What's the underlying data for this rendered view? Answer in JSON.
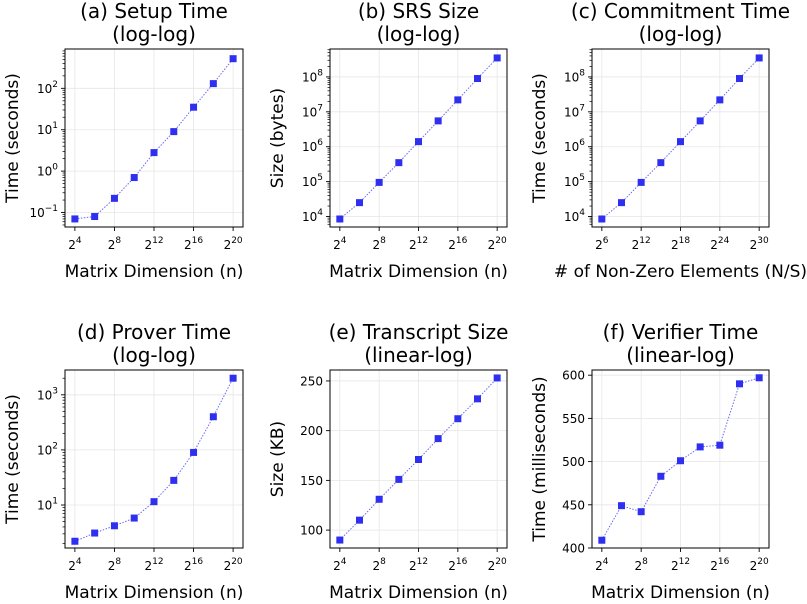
{
  "figure": {
    "marker_color": "#2f2ff0",
    "line_color": "#6a6af0",
    "grid": true
  },
  "chart_data": [
    {
      "id": "a",
      "type": "line",
      "title_line1": "(a) Setup Time",
      "title_line2": "(log-log)",
      "xlabel": "Matrix Dimension (n)",
      "ylabel": "Time (seconds)",
      "xscale": "log2",
      "yscale": "log10",
      "x_exponents": [
        4,
        6,
        8,
        10,
        12,
        14,
        16,
        18,
        20
      ],
      "y": [
        0.07,
        0.08,
        0.22,
        0.7,
        2.8,
        9,
        35,
        130,
        520
      ],
      "x_ticks": [
        4,
        8,
        12,
        16,
        20
      ],
      "x_tick_labels": [
        {
          "base": "2",
          "exp": "4"
        },
        {
          "base": "2",
          "exp": "8"
        },
        {
          "base": "2",
          "exp": "12"
        },
        {
          "base": "2",
          "exp": "16"
        },
        {
          "base": "2",
          "exp": "20"
        }
      ],
      "y_ticks": [
        0.1,
        1,
        10,
        100
      ],
      "y_tick_labels": [
        {
          "base": "10",
          "exp": "−1"
        },
        {
          "base": "10",
          "exp": "0"
        },
        {
          "base": "10",
          "exp": "1"
        },
        {
          "base": "10",
          "exp": "2"
        }
      ],
      "xlim_exp": [
        3,
        21
      ],
      "ylim_log10": [
        -1.35,
        2.95
      ]
    },
    {
      "id": "b",
      "type": "line",
      "title_line1": "(b) SRS Size",
      "title_line2": "(log-log)",
      "xlabel": "Matrix Dimension (n)",
      "ylabel": "Size (bytes)",
      "xscale": "log2",
      "yscale": "log10",
      "x_exponents": [
        4,
        6,
        8,
        10,
        12,
        14,
        16,
        18,
        20
      ],
      "y": [
        8500,
        25000,
        95000,
        350000,
        1400000,
        5500000,
        22000000,
        90000000,
        350000000
      ],
      "x_ticks": [
        4,
        8,
        12,
        16,
        20
      ],
      "x_tick_labels": [
        {
          "base": "2",
          "exp": "4"
        },
        {
          "base": "2",
          "exp": "8"
        },
        {
          "base": "2",
          "exp": "12"
        },
        {
          "base": "2",
          "exp": "16"
        },
        {
          "base": "2",
          "exp": "20"
        }
      ],
      "y_ticks": [
        10000,
        100000,
        1000000,
        10000000,
        100000000
      ],
      "y_tick_labels": [
        {
          "base": "10",
          "exp": "4"
        },
        {
          "base": "10",
          "exp": "5"
        },
        {
          "base": "10",
          "exp": "6"
        },
        {
          "base": "10",
          "exp": "7"
        },
        {
          "base": "10",
          "exp": "8"
        }
      ],
      "xlim_exp": [
        3,
        21
      ],
      "ylim_log10": [
        3.7,
        8.8
      ]
    },
    {
      "id": "c",
      "type": "line",
      "title_line1": "(c) Commitment Time",
      "title_line2": "(log-log)",
      "xlabel": "# of Non-Zero Elements (N/S)",
      "ylabel": "Time (seconds)",
      "xscale": "log2",
      "yscale": "log10",
      "x_exponents": [
        6,
        9,
        12,
        15,
        18,
        21,
        24,
        27,
        30
      ],
      "y": [
        8500,
        25000,
        95000,
        350000,
        1400000,
        5500000,
        22000000,
        90000000,
        350000000
      ],
      "x_ticks": [
        6,
        12,
        18,
        24,
        30
      ],
      "x_tick_labels": [
        {
          "base": "2",
          "exp": "6"
        },
        {
          "base": "2",
          "exp": "12"
        },
        {
          "base": "2",
          "exp": "18"
        },
        {
          "base": "2",
          "exp": "24"
        },
        {
          "base": "2",
          "exp": "30"
        }
      ],
      "y_ticks": [
        10000,
        100000,
        1000000,
        10000000,
        100000000
      ],
      "y_tick_labels": [
        {
          "base": "10",
          "exp": "4"
        },
        {
          "base": "10",
          "exp": "5"
        },
        {
          "base": "10",
          "exp": "6"
        },
        {
          "base": "10",
          "exp": "7"
        },
        {
          "base": "10",
          "exp": "8"
        }
      ],
      "xlim_exp": [
        4.5,
        31.5
      ],
      "ylim_log10": [
        3.7,
        8.8
      ]
    },
    {
      "id": "d",
      "type": "line",
      "title_line1": "(d) Prover Time",
      "title_line2": "(log-log)",
      "xlabel": "Matrix Dimension (n)",
      "ylabel": "Time (seconds)",
      "xscale": "log2",
      "yscale": "log10",
      "x_exponents": [
        4,
        6,
        8,
        10,
        12,
        14,
        16,
        18,
        20
      ],
      "y": [
        2.2,
        3.1,
        4.2,
        5.8,
        11.5,
        28,
        90,
        400,
        2000
      ],
      "x_ticks": [
        4,
        8,
        12,
        16,
        20
      ],
      "x_tick_labels": [
        {
          "base": "2",
          "exp": "4"
        },
        {
          "base": "2",
          "exp": "8"
        },
        {
          "base": "2",
          "exp": "12"
        },
        {
          "base": "2",
          "exp": "16"
        },
        {
          "base": "2",
          "exp": "20"
        }
      ],
      "y_ticks": [
        10,
        100,
        1000
      ],
      "y_tick_labels": [
        {
          "base": "10",
          "exp": "1"
        },
        {
          "base": "10",
          "exp": "2"
        },
        {
          "base": "10",
          "exp": "3"
        }
      ],
      "xlim_exp": [
        3,
        21
      ],
      "ylim_log10": [
        0.22,
        3.45
      ]
    },
    {
      "id": "e",
      "type": "line",
      "title_line1": "(e) Transcript Size",
      "title_line2": "(linear-log)",
      "xlabel": "Matrix Dimension (n)",
      "ylabel": "Size (KB)",
      "xscale": "log2",
      "yscale": "linear",
      "x_exponents": [
        4,
        6,
        8,
        10,
        12,
        14,
        16,
        18,
        20
      ],
      "y": [
        90,
        110,
        131,
        151,
        171,
        192,
        212,
        232,
        253
      ],
      "x_ticks": [
        4,
        8,
        12,
        16,
        20
      ],
      "x_tick_labels": [
        {
          "base": "2",
          "exp": "4"
        },
        {
          "base": "2",
          "exp": "8"
        },
        {
          "base": "2",
          "exp": "12"
        },
        {
          "base": "2",
          "exp": "16"
        },
        {
          "base": "2",
          "exp": "20"
        }
      ],
      "y_ticks": [
        100,
        150,
        200,
        250
      ],
      "y_tick_labels": [
        {
          "base": "100",
          "exp": ""
        },
        {
          "base": "150",
          "exp": ""
        },
        {
          "base": "200",
          "exp": ""
        },
        {
          "base": "250",
          "exp": ""
        }
      ],
      "xlim_exp": [
        3,
        21
      ],
      "ylim": [
        82,
        261
      ]
    },
    {
      "id": "f",
      "type": "line",
      "title_line1": "(f) Verifier Time",
      "title_line2": "(linear-log)",
      "xlabel": "Matrix Dimension (n)",
      "ylabel": "Time (milliseconds)",
      "xscale": "log2",
      "yscale": "linear",
      "x_exponents": [
        4,
        6,
        8,
        10,
        12,
        14,
        16,
        18,
        20
      ],
      "y": [
        409,
        449,
        442,
        483,
        501,
        517,
        519,
        590,
        597
      ],
      "x_ticks": [
        4,
        8,
        12,
        16,
        20
      ],
      "x_tick_labels": [
        {
          "base": "2",
          "exp": "4"
        },
        {
          "base": "2",
          "exp": "8"
        },
        {
          "base": "2",
          "exp": "12"
        },
        {
          "base": "2",
          "exp": "16"
        },
        {
          "base": "2",
          "exp": "20"
        }
      ],
      "y_ticks": [
        400,
        450,
        500,
        550,
        600
      ],
      "y_tick_labels": [
        {
          "base": "400",
          "exp": ""
        },
        {
          "base": "450",
          "exp": ""
        },
        {
          "base": "500",
          "exp": ""
        },
        {
          "base": "550",
          "exp": ""
        },
        {
          "base": "600",
          "exp": ""
        }
      ],
      "xlim_exp": [
        3,
        21
      ],
      "ylim": [
        400,
        606
      ]
    }
  ]
}
